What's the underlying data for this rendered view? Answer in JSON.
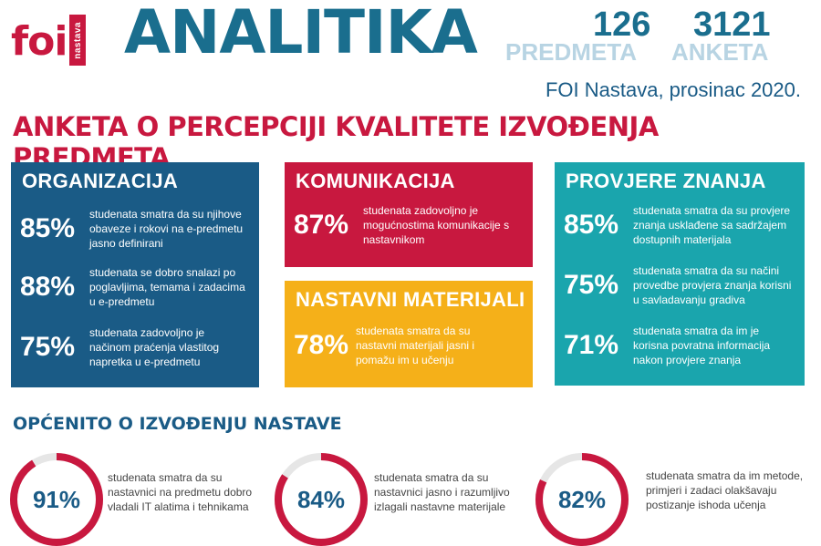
{
  "header": {
    "logo_text": "foi",
    "logo_sub": "nastava",
    "title": "ANALITIKA",
    "stats": [
      {
        "value": "126",
        "label": "PREDMETA"
      },
      {
        "value": "3121",
        "label": "ANKETA"
      }
    ],
    "subline": "FOI Nastava, prosinac 2020.",
    "headline": "ANKETA O PERCEPCIJI KVALITETE IZVOĐENJA PREDMETA"
  },
  "colors": {
    "navy": "#1a5b86",
    "red": "#c8183f",
    "yellow": "#f5b019",
    "teal": "#1aa5ad",
    "ring_track": "#e6e6e6"
  },
  "boxes": {
    "organizacija": {
      "title": "ORGANIZACIJA",
      "items": [
        {
          "pct": "85%",
          "text": "studenata smatra da su njihove obaveze i rokovi na e-predmetu jasno definirani"
        },
        {
          "pct": "88%",
          "text": "studenata se dobro snalazi po poglavljima, temama i zadacima u e-predmetu"
        },
        {
          "pct": "75%",
          "text": "studenata zadovoljno je načinom praćenja vlastitog napretka u e-predmetu"
        }
      ]
    },
    "komunikacija": {
      "title": "KOMUNIKACIJA",
      "items": [
        {
          "pct": "87%",
          "text": "studenata zadovoljno je mogućnostima komunikacije s nastavnikom"
        }
      ]
    },
    "nastavni": {
      "title": "NASTAVNI MATERIJALI",
      "items": [
        {
          "pct": "78%",
          "text": "studenata smatra da su nastavni materijali jasni i pomažu im u učenju"
        }
      ]
    },
    "provjere": {
      "title": "PROVJERE ZNANJA",
      "items": [
        {
          "pct": "85%",
          "text": "studenata smatra da su provjere znanja usklađene sa sadržajem dostupnih materijala"
        },
        {
          "pct": "75%",
          "text": "studenata smatra da su načini provedbe provjera znanja korisni u savladavanju gradiva"
        },
        {
          "pct": "71%",
          "text": "studenata smatra da im je korisna povratna informacija nakon provjere znanja"
        }
      ]
    }
  },
  "general": {
    "title": "OPĆENITO O IZVOĐENJU NASTAVE",
    "rings": [
      {
        "label": "91%",
        "value": 91,
        "text": "studenata smatra da su nastavnici na predmetu dobro vladali IT alatima i tehnikama"
      },
      {
        "label": "84%",
        "value": 84,
        "text": "studenata smatra da su nastavnici jasno i razumljivo izlagali nastavne materijale"
      },
      {
        "label": "82%",
        "value": 82,
        "text": "studenata smatra da im metode, primjeri i zadaci olakšavaju postizanje ishoda učenja"
      }
    ]
  }
}
